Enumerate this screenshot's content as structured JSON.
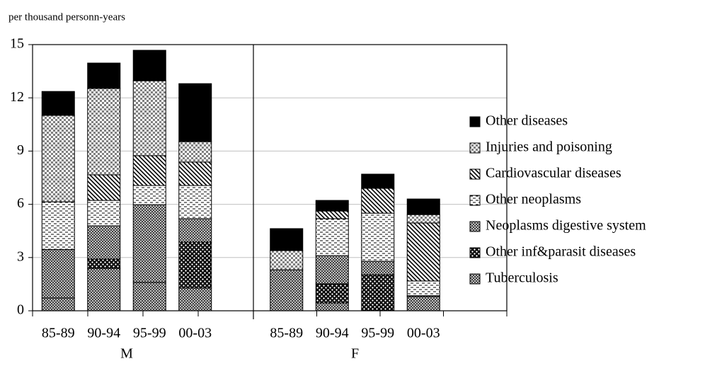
{
  "chart_data": {
    "type": "stacked-bar",
    "y_label": "per thousand personn-years",
    "categories": [
      "85-89",
      "90-94",
      "95-99",
      "00-03",
      null,
      "85-89",
      "90-94",
      "95-99",
      "00-03",
      null
    ],
    "groups": [
      "M",
      "F"
    ],
    "ylim": [
      0,
      15
    ],
    "yticks": [
      0,
      3,
      6,
      9,
      12,
      15
    ],
    "grid": true,
    "series": [
      {
        "name": "Tuberculosis",
        "color": "#7f7f7f",
        "pattern": "fine-dots",
        "values": [
          0.72,
          2.39,
          1.6,
          1.28,
          null,
          2.31,
          0.44,
          0,
          0.8,
          null
        ]
      },
      {
        "name": "Other inf&parasit diseases",
        "color": "#ffffff",
        "pattern": "big-dots",
        "values": [
          0,
          0.52,
          0,
          2.59,
          null,
          0,
          1.08,
          2.03,
          0,
          null
        ]
      },
      {
        "name": "Neoplasms digestive system",
        "color": "#a6a6a6",
        "pattern": "fine-dots",
        "values": [
          2.73,
          1.88,
          4.38,
          1.32,
          null,
          0,
          1.59,
          0.76,
          0.05,
          null
        ]
      },
      {
        "name": "Other neoplasms",
        "color": "#ffffff",
        "pattern": "dashes",
        "values": [
          2.69,
          1.43,
          1.08,
          1.87,
          null,
          0,
          2.08,
          2.71,
          0.83,
          null
        ]
      },
      {
        "name": "Cardiovascular diseases",
        "color": "#ffffff",
        "pattern": "diagonal",
        "values": [
          0,
          1.44,
          1.68,
          1.32,
          null,
          0,
          0.43,
          1.4,
          3.27,
          null
        ]
      },
      {
        "name": "Injuries and poisoning",
        "color": "#d9d9d9",
        "pattern": "checker",
        "values": [
          4.87,
          4.87,
          4.22,
          1.15,
          null,
          1.08,
          0,
          0,
          0.47,
          null
        ]
      },
      {
        "name": "Other diseases",
        "color": "#000000",
        "pattern": "solid",
        "values": [
          1.35,
          1.43,
          1.72,
          3.27,
          null,
          1.24,
          0.6,
          0.8,
          0.88,
          null
        ]
      }
    ]
  }
}
